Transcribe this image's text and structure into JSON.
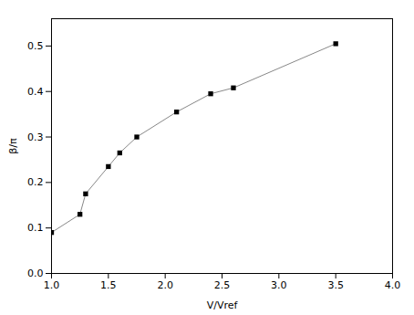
{
  "chart_data": {
    "type": "line",
    "x": [
      1.0,
      1.25,
      1.3,
      1.5,
      1.6,
      1.75,
      2.1,
      2.4,
      2.6,
      3.5
    ],
    "values": [
      0.09,
      0.13,
      0.175,
      0.235,
      0.265,
      0.3,
      0.355,
      0.395,
      0.408,
      0.505
    ],
    "color": "#888888",
    "marker": "square",
    "xlabel": "V/Vref",
    "ylabel": "β/π",
    "xlim": [
      1.0,
      4.0
    ],
    "ylim": [
      0.0,
      0.56
    ],
    "xticks": [
      {
        "value": 1.0,
        "label": "1.0"
      },
      1.5,
      {
        "value": 2.0,
        "label": "2.0"
      },
      2.5,
      {
        "value": 3.0,
        "label": "3.0"
      },
      3.5,
      {
        "value": 4.0,
        "label": "4.0"
      }
    ],
    "yticks": [
      {
        "value": 0.0,
        "label": "0.0"
      },
      0.1,
      0.2,
      0.3,
      0.4,
      0.5
    ],
    "grid": false
  }
}
